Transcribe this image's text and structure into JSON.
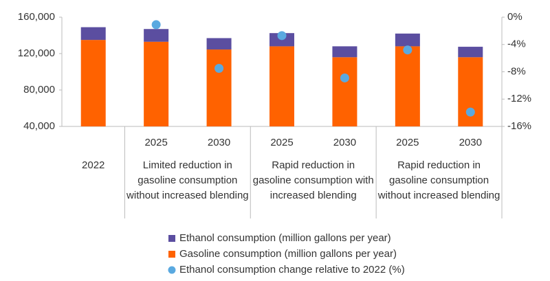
{
  "chart_data": {
    "type": "bar",
    "stacked": true,
    "groups": [
      {
        "name": "2022",
        "categories": [
          null
        ]
      },
      {
        "name": "Limited reduction in gasoline consumption without increased blending",
        "categories": [
          "2025",
          "2030"
        ]
      },
      {
        "name": "Rapid reduction in gasoline consumption with increased blending",
        "categories": [
          "2025",
          "2030"
        ]
      },
      {
        "name": "Rapid reduction in gasoline consumption without increased blending",
        "categories": [
          "2025",
          "2030"
        ]
      }
    ],
    "series": [
      {
        "name": "Ethanol consumption (million gallons per year)",
        "type": "bar",
        "color": "#5b4ea0",
        "values": [
          14000,
          14000,
          12500,
          14500,
          12000,
          14000,
          11500
        ]
      },
      {
        "name": "Gasoline consumption (million gallons per year)",
        "type": "bar",
        "color": "#ff6200",
        "values": [
          135000,
          133000,
          124500,
          128000,
          116000,
          128000,
          116000
        ]
      },
      {
        "name": "Ethanol consumption change relative to 2022 (%)",
        "type": "scatter",
        "axis": "y2",
        "color": "#5aa9e0",
        "values": [
          null,
          -1.1,
          -7.5,
          -2.7,
          -8.9,
          -4.8,
          -13.9
        ]
      }
    ],
    "ylim": [
      40000,
      160000
    ],
    "yticks": [
      {
        "value": 40000,
        "label": "40,000"
      },
      {
        "value": 80000,
        "label": "80,000"
      },
      {
        "value": 120000,
        "label": "120,000"
      },
      {
        "value": 160000,
        "label": "160,000"
      }
    ],
    "y2lim": [
      -16,
      0
    ],
    "y2ticks": [
      {
        "value": 0,
        "label": "0%"
      },
      {
        "value": -4,
        "label": "-4%"
      },
      {
        "value": -8,
        "label": "-8%"
      },
      {
        "value": -12,
        "label": "-12%"
      },
      {
        "value": -16,
        "label": "-16%"
      }
    ],
    "grid": false
  }
}
